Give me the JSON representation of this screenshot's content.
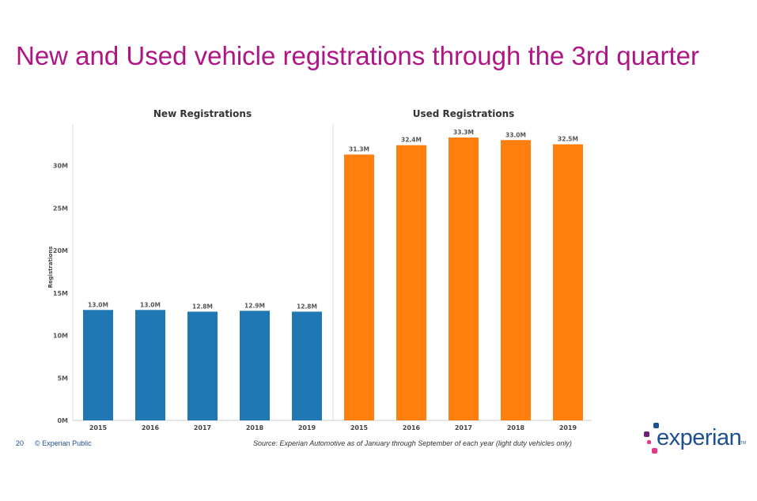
{
  "slide": {
    "title": "New and Used vehicle registrations through the 3rd quarter",
    "page_number": "20",
    "copyright": "© Experian Public",
    "source": "Source: Experian Automotive as of January through September of each year (light duty vehicles only)",
    "logo_text": "experian",
    "logo_tm": "TM"
  },
  "colors": {
    "title": "#AF1685",
    "new_bar": "#1F77B4",
    "used_bar": "#FF7F0E",
    "brand_blue": "#1d4f91",
    "brand_pink": "#E63888",
    "brand_purple": "#6D2077"
  },
  "chart_data": [
    {
      "type": "bar",
      "title": "New Registrations",
      "ylabel": "Registrations",
      "categories": [
        "2015",
        "2016",
        "2017",
        "2018",
        "2019"
      ],
      "values": [
        13.0,
        13.0,
        12.8,
        12.9,
        12.8
      ],
      "value_labels": [
        "13.0M",
        "13.0M",
        "12.8M",
        "12.9M",
        "12.8M"
      ],
      "yticks": [
        "0M",
        "5M",
        "10M",
        "15M",
        "20M",
        "25M",
        "30M"
      ],
      "ylim": [
        0,
        35
      ],
      "unit": "M",
      "color": "#1F77B4"
    },
    {
      "type": "bar",
      "title": "Used Registrations",
      "categories": [
        "2015",
        "2016",
        "2017",
        "2018",
        "2019"
      ],
      "values": [
        31.3,
        32.4,
        33.3,
        33.0,
        32.5
      ],
      "value_labels": [
        "31.3M",
        "32.4M",
        "33.3M",
        "33.0M",
        "32.5M"
      ],
      "ylim": [
        0,
        35
      ],
      "unit": "M",
      "color": "#FF7F0E"
    }
  ]
}
